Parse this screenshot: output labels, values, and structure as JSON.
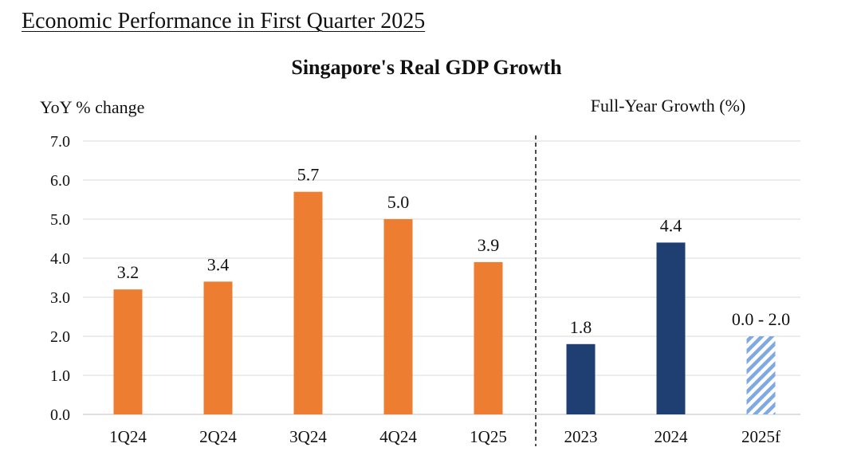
{
  "page": {
    "heading": "Economic Performance in First Quarter 2025"
  },
  "chart_data": {
    "type": "bar",
    "title": "Singapore's Real GDP Growth",
    "ylabel": "YoY % change",
    "xlabel": "",
    "ylim": [
      0,
      7
    ],
    "ytick_step": 1,
    "yticks": [
      "0.0",
      "1.0",
      "2.0",
      "3.0",
      "4.0",
      "5.0",
      "6.0",
      "7.0"
    ],
    "grid": true,
    "legend": "none",
    "panels": [
      {
        "name": "quarterly",
        "caption": "",
        "color": "#ED7D31",
        "categories": [
          "1Q24",
          "2Q24",
          "3Q24",
          "4Q24",
          "1Q25"
        ],
        "values": [
          3.2,
          3.4,
          5.7,
          5.0,
          3.9
        ],
        "labels": [
          "3.2",
          "3.4",
          "5.7",
          "5.0",
          "3.9"
        ]
      },
      {
        "name": "full-year",
        "caption": "Full-Year Growth (%)",
        "color": "#1F3F73",
        "forecast_color": "#7FA9E3",
        "categories": [
          "2023",
          "2024",
          "2025f"
        ],
        "values": [
          1.8,
          4.4,
          2.0
        ],
        "range_low": [
          null,
          null,
          0.0
        ],
        "range_high": [
          null,
          null,
          2.0
        ],
        "forecast": [
          false,
          false,
          true
        ],
        "labels": [
          "1.8",
          "4.4",
          "0.0 - 2.0"
        ]
      }
    ]
  }
}
